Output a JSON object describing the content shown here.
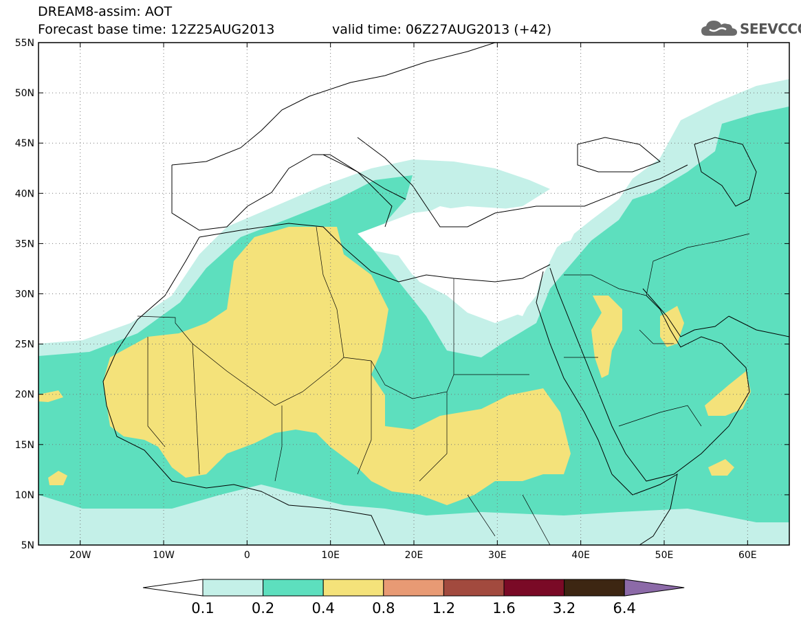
{
  "header": {
    "model_title": "DREAM8-assim: AOT",
    "forecast_base": "Forecast base time: 12Z25AUG2013",
    "valid_time": "valid time: 06Z27AUG2013 (+42)"
  },
  "logo": {
    "text": "SEEVCCC",
    "icon": "cloud-logo-icon"
  },
  "map": {
    "lon_range": [
      -25,
      65
    ],
    "lat_range": [
      5,
      55
    ],
    "lat_ticks": [
      "5N",
      "10N",
      "15N",
      "20N",
      "25N",
      "30N",
      "35N",
      "40N",
      "45N",
      "50N",
      "55N"
    ],
    "lon_ticks": [
      "20W",
      "10W",
      "0",
      "10E",
      "20E",
      "30E",
      "40E",
      "50E",
      "60E"
    ],
    "gridlines": "dotted",
    "variable": "Aerosol Optical Thickness",
    "fill_colors": {
      "0.1-0.2": "#c4f0e8",
      "0.2-0.4": "#5ddfbe",
      "0.4-0.8": "#f4e27a"
    }
  },
  "colorbar": {
    "labels": [
      "0.1",
      "0.2",
      "0.4",
      "0.8",
      "1.2",
      "1.6",
      "3.2",
      "6.4"
    ],
    "colors": [
      "#c4f0e8",
      "#5ddfbe",
      "#f4e27a",
      "#e89a74",
      "#a24a3e",
      "#7a0a26",
      "#3d2612",
      "#8c6aa8"
    ],
    "under_color": "#ffffff"
  }
}
